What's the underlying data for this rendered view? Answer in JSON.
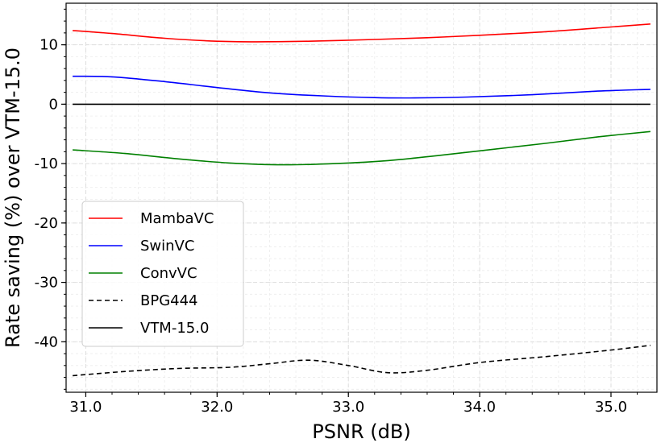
{
  "chart_data": {
    "type": "line",
    "title": "",
    "xlabel": "PSNR (dB)",
    "ylabel": "Rate saving (%) over VTM-15.0",
    "xlim": [
      30.85,
      35.35
    ],
    "ylim": [
      -48.5,
      17
    ],
    "xticks": [
      31.0,
      32.0,
      33.0,
      34.0,
      35.0
    ],
    "xtick_labels": [
      "31.0",
      "32.0",
      "33.0",
      "34.0",
      "35.0"
    ],
    "yticks": [
      -40,
      -30,
      -20,
      -10,
      0,
      10
    ],
    "ytick_labels": [
      "-40",
      "-30",
      "-20",
      "-10",
      "0",
      "10"
    ],
    "grid": true,
    "legend_position": "center-left",
    "series": [
      {
        "name": "MambaVC",
        "color": "#ff0000",
        "dash": "solid",
        "x": [
          30.9,
          31.2,
          31.6,
          32.0,
          32.3,
          32.7,
          33.2,
          33.6,
          34.0,
          34.5,
          35.0,
          35.3
        ],
        "y": [
          12.4,
          11.9,
          11.1,
          10.6,
          10.5,
          10.6,
          10.9,
          11.2,
          11.6,
          12.2,
          13.0,
          13.5
        ]
      },
      {
        "name": "SwinVC",
        "color": "#0000ff",
        "dash": "solid",
        "x": [
          30.9,
          31.2,
          31.6,
          32.0,
          32.4,
          32.8,
          33.2,
          33.5,
          33.9,
          34.4,
          34.9,
          35.3
        ],
        "y": [
          4.7,
          4.6,
          3.8,
          2.8,
          1.9,
          1.4,
          1.1,
          1.05,
          1.2,
          1.6,
          2.2,
          2.5
        ]
      },
      {
        "name": "ConvVC",
        "color": "#008000",
        "dash": "solid",
        "x": [
          30.9,
          31.3,
          31.7,
          32.1,
          32.5,
          32.9,
          33.3,
          33.7,
          34.1,
          34.5,
          34.9,
          35.3
        ],
        "y": [
          -7.7,
          -8.3,
          -9.2,
          -9.9,
          -10.2,
          -10.0,
          -9.5,
          -8.6,
          -7.6,
          -6.6,
          -5.5,
          -4.6
        ]
      },
      {
        "name": "BPG444",
        "color": "#000000",
        "dash": "dashed",
        "x": [
          30.9,
          31.3,
          31.7,
          32.1,
          32.4,
          32.7,
          33.0,
          33.3,
          33.6,
          34.0,
          34.5,
          35.0,
          35.3
        ],
        "y": [
          -45.7,
          -45.0,
          -44.5,
          -44.3,
          -43.7,
          -43.1,
          -44.0,
          -45.2,
          -44.8,
          -43.5,
          -42.5,
          -41.4,
          -40.6
        ]
      },
      {
        "name": "VTM-15.0",
        "color": "#000000",
        "dash": "solid",
        "x": [
          30.9,
          35.3
        ],
        "y": [
          0,
          0
        ]
      }
    ]
  }
}
